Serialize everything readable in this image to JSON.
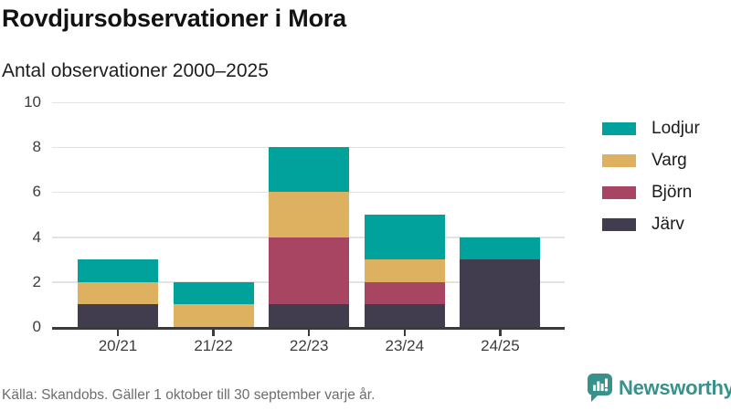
{
  "header": {
    "title": "Rovdjursobservationer i Mora",
    "subtitle": "Antal observationer 2000–2025"
  },
  "chart_data": {
    "type": "bar",
    "stacked": true,
    "title": "Rovdjursobservationer i Mora",
    "subtitle": "Antal observationer 2000–2025",
    "categories": [
      "20/21",
      "21/22",
      "22/23",
      "23/24",
      "24/25"
    ],
    "series": [
      {
        "name": "Lodjur",
        "color": "#00a29b",
        "values": [
          1,
          1,
          2,
          2,
          1
        ]
      },
      {
        "name": "Varg",
        "color": "#ddb15f",
        "values": [
          1,
          1,
          2,
          1,
          0
        ]
      },
      {
        "name": "Björn",
        "color": "#a84563",
        "values": [
          0,
          0,
          3,
          1,
          0
        ]
      },
      {
        "name": "Järv",
        "color": "#413d4f",
        "values": [
          1,
          0,
          1,
          1,
          3
        ]
      }
    ],
    "stack_order_bottom_to_top": [
      "Järv",
      "Björn",
      "Varg",
      "Lodjur"
    ],
    "totals": [
      3,
      2,
      8,
      5,
      4
    ],
    "ylim": [
      0,
      10
    ],
    "yticks": [
      0,
      2,
      4,
      6,
      8,
      10
    ],
    "grid": true,
    "legend_position": "right",
    "axis_color": "#3b3b3b",
    "gridline_color": "#e3e3e3"
  },
  "footer": {
    "source": "Källa: Skandobs. Gäller 1 oktober till 30 september varje år.",
    "brand": "Newsworthy",
    "brand_color": "#37928c"
  }
}
